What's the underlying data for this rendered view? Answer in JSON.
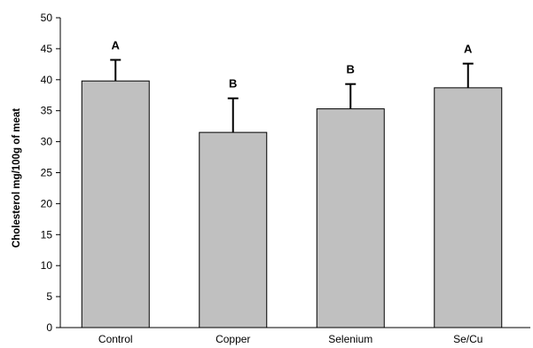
{
  "chart_data": {
    "type": "bar",
    "title": "",
    "xlabel": "",
    "ylabel": "Cholesterol  mg/100g of meat",
    "ylim": [
      0,
      50
    ],
    "yticks": [
      0,
      5,
      10,
      15,
      20,
      25,
      30,
      35,
      40,
      45,
      50
    ],
    "grid": false,
    "categories": [
      "Control",
      "Copper",
      "Selenium",
      "Se/Cu"
    ],
    "values": [
      39.8,
      31.5,
      35.3,
      38.7
    ],
    "error_upper": [
      3.4,
      5.5,
      4.0,
      3.9
    ],
    "significance_letters": [
      "A",
      "B",
      "B",
      "A"
    ],
    "colors": {
      "bar_fill": "#c0c0c0",
      "bar_stroke": "#000000",
      "axis": "#000000"
    }
  }
}
